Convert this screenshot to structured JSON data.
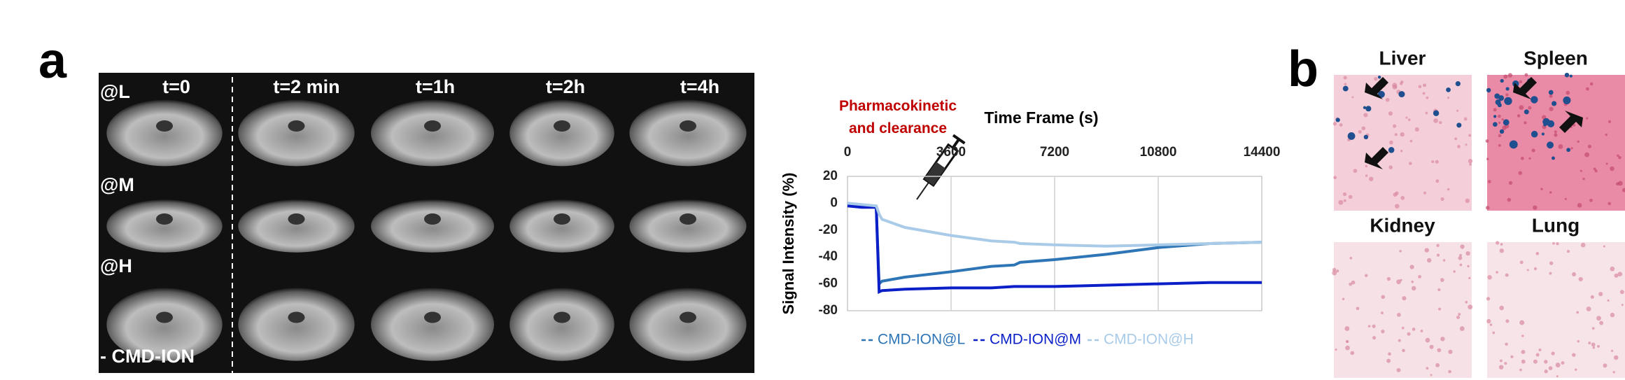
{
  "panel_a": {
    "label": "a",
    "time_labels": [
      "t=0",
      "t=2 min",
      "t=1h",
      "t=2h",
      "t=4h"
    ],
    "row_labels": [
      "@L",
      "@M",
      "@H",
      "- CMD-ION"
    ]
  },
  "panel_b": {
    "label": "b",
    "tissues": [
      "Liver",
      "Spleen",
      "Kidney",
      "Lung"
    ]
  },
  "chart_data": {
    "type": "line",
    "annotation": "Pharmacokinetic and clearance",
    "annotation_color": "#c00000",
    "xlabel": "Time Frame (s)",
    "ylabel": "Signal  Intensity (%)",
    "x": [
      0,
      500,
      1000,
      1100,
      1200,
      2000,
      3600,
      5000,
      5800,
      6000,
      7200,
      9000,
      10800,
      12600,
      14400
    ],
    "series": [
      {
        "name": "CMD-ION@L",
        "color": "#2e75b6",
        "values": [
          0,
          -2,
          -3,
          -60,
          -58,
          -55,
          -51,
          -47,
          -46,
          -44,
          -42,
          -38,
          -33,
          -30,
          -29
        ]
      },
      {
        "name": "CMD-ION@M",
        "color": "#0a1fc8",
        "values": [
          -2,
          -3,
          -3,
          -66,
          -65,
          -64,
          -63,
          -63,
          -62,
          -62,
          -62,
          -61,
          -60,
          -59,
          -59
        ]
      },
      {
        "name": "CMD-ION@H",
        "color": "#a9cbe8",
        "values": [
          0,
          -1,
          -2,
          -8,
          -12,
          -18,
          -24,
          -28,
          -29,
          -30,
          -31,
          -32,
          -31,
          -30,
          -29
        ]
      }
    ],
    "xlim": [
      0,
      14400
    ],
    "xticks": [
      0,
      3600,
      7200,
      10800,
      14400
    ],
    "ylim": [
      -80,
      20
    ],
    "yticks": [
      20,
      0,
      -20,
      -40,
      -60,
      -80
    ],
    "grid": "x",
    "legend": "bottom"
  }
}
